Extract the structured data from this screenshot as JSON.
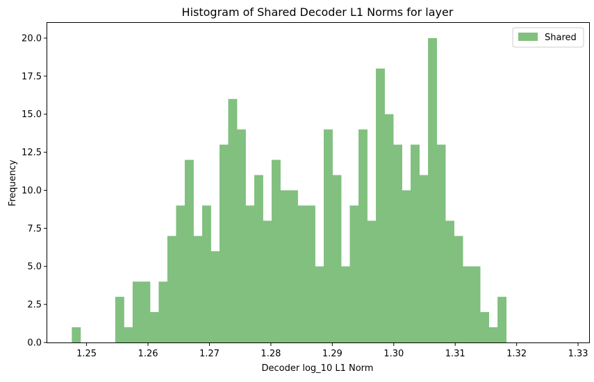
{
  "chart_data": {
    "type": "bar",
    "title": "Histogram of Shared Decoder L1 Norms for layer",
    "xlabel": "Decoder log_10 L1 Norm",
    "ylabel": "Frequency",
    "xlim": [
      1.2436,
      1.3318
    ],
    "ylim": [
      0,
      21
    ],
    "bin_start": 1.2476,
    "bin_width": 0.001414,
    "bar_color": "#81c07f",
    "x_ticks": [
      "1.25",
      "1.26",
      "1.27",
      "1.28",
      "1.29",
      "1.30",
      "1.31",
      "1.32",
      "1.33"
    ],
    "y_ticks": [
      "0.0",
      "2.5",
      "5.0",
      "7.5",
      "10.0",
      "12.5",
      "15.0",
      "17.5",
      "20.0"
    ],
    "legend": {
      "position": "top-right",
      "entries": [
        {
          "label": "Shared",
          "color": "#81c07f"
        }
      ]
    },
    "series": [
      {
        "name": "Shared",
        "values": [
          1,
          0,
          0,
          0,
          0,
          3,
          1,
          4,
          4,
          2,
          4,
          7,
          9,
          12,
          7,
          9,
          6,
          13,
          16,
          14,
          9,
          11,
          8,
          12,
          10,
          10,
          9,
          9,
          5,
          14,
          11,
          5,
          9,
          14,
          8,
          18,
          15,
          13,
          10,
          13,
          11,
          20,
          13,
          8,
          7,
          5,
          5,
          2,
          1,
          3
        ]
      }
    ]
  }
}
